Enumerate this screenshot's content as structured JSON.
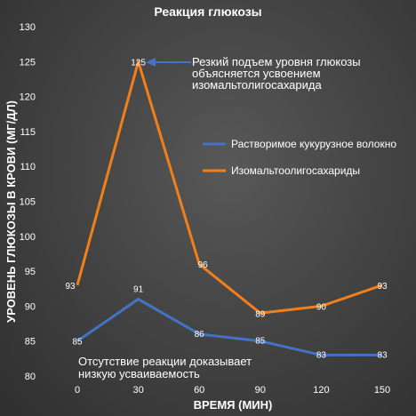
{
  "chart_data": {
    "type": "line",
    "title": "Реакция глюкозы",
    "xlabel": "ВРЕМЯ (МИН)",
    "ylabel": "УРОВЕНЬ ГЛЮКОЗЫ В КРОВИ (МГ/ДЛ)",
    "x": [
      0,
      30,
      60,
      90,
      120,
      150
    ],
    "ylim": [
      80,
      130
    ],
    "y_ticks": [
      80,
      85,
      90,
      95,
      100,
      105,
      110,
      115,
      120,
      125,
      130
    ],
    "grid": false,
    "legend_position": "right",
    "series": [
      {
        "name": "Растворимое кукурузное волокно",
        "color": "#4472c4",
        "values": [
          85,
          91,
          86,
          85,
          83,
          83
        ]
      },
      {
        "name": "Изомальтоолигосахариды",
        "color": "#f07f1c",
        "values": [
          93,
          125,
          96,
          89,
          90,
          93
        ]
      }
    ],
    "annotations": [
      {
        "lines": [
          "Резкий подъем уровня глюкозы",
          "объясняется усвоением",
          "изомальтолигосахарида"
        ],
        "arrow_to": {
          "x": 30,
          "y": 125
        }
      },
      {
        "lines": [
          "Отсутствие реакции доказывает",
          "низкую усваиваемость"
        ]
      }
    ]
  }
}
